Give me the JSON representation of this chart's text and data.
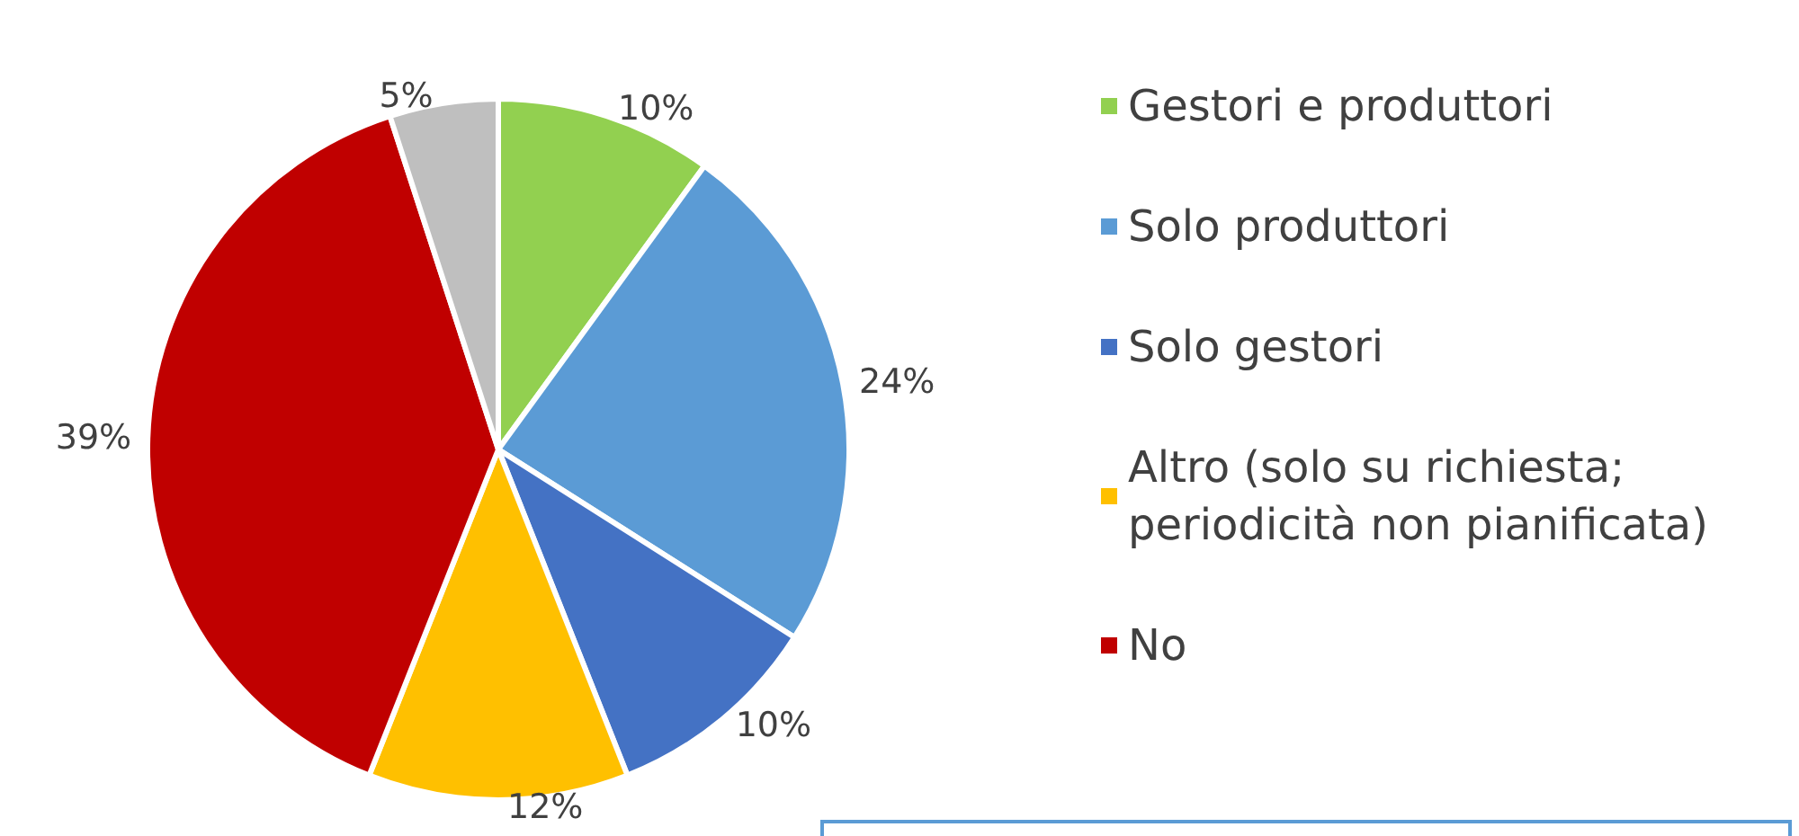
{
  "chart_data": {
    "type": "pie",
    "categories": [
      "Gestori e produttori",
      "Solo produttori",
      "Solo gestori",
      "Altro (solo su richiesta; periodicità non pianificata)",
      "No",
      null
    ],
    "values": [
      10,
      24,
      10,
      12,
      39,
      5
    ],
    "value_labels": [
      "10%",
      "24%",
      "10%",
      "12%",
      "39%",
      "5%"
    ],
    "colors": [
      "#92d050",
      "#5b9bd5",
      "#4472c4",
      "#ffc000",
      "#c00000",
      "#bfbfbf"
    ],
    "legend": "right"
  }
}
